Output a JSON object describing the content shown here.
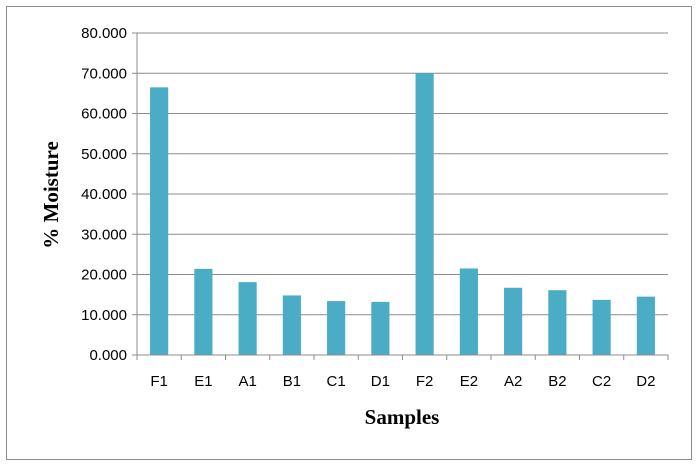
{
  "chart_data": {
    "type": "bar",
    "title": "",
    "xlabel": "Samples",
    "ylabel": "% Moisture",
    "categories": [
      "F1",
      "E1",
      "A1",
      "B1",
      "C1",
      "D1",
      "F2",
      "E2",
      "A2",
      "B2",
      "C2",
      "D2"
    ],
    "values": [
      66.5,
      21.4,
      18.1,
      14.8,
      13.4,
      13.2,
      70.0,
      21.5,
      16.7,
      16.1,
      13.7,
      14.5
    ],
    "ylim": [
      0,
      80
    ],
    "yticks": [
      "0.000",
      "10.000",
      "20.000",
      "30.000",
      "40.000",
      "50.000",
      "60.000",
      "70.000",
      "80.000"
    ],
    "grid": true,
    "legend": "none",
    "bar_color": "#4bacc6"
  }
}
